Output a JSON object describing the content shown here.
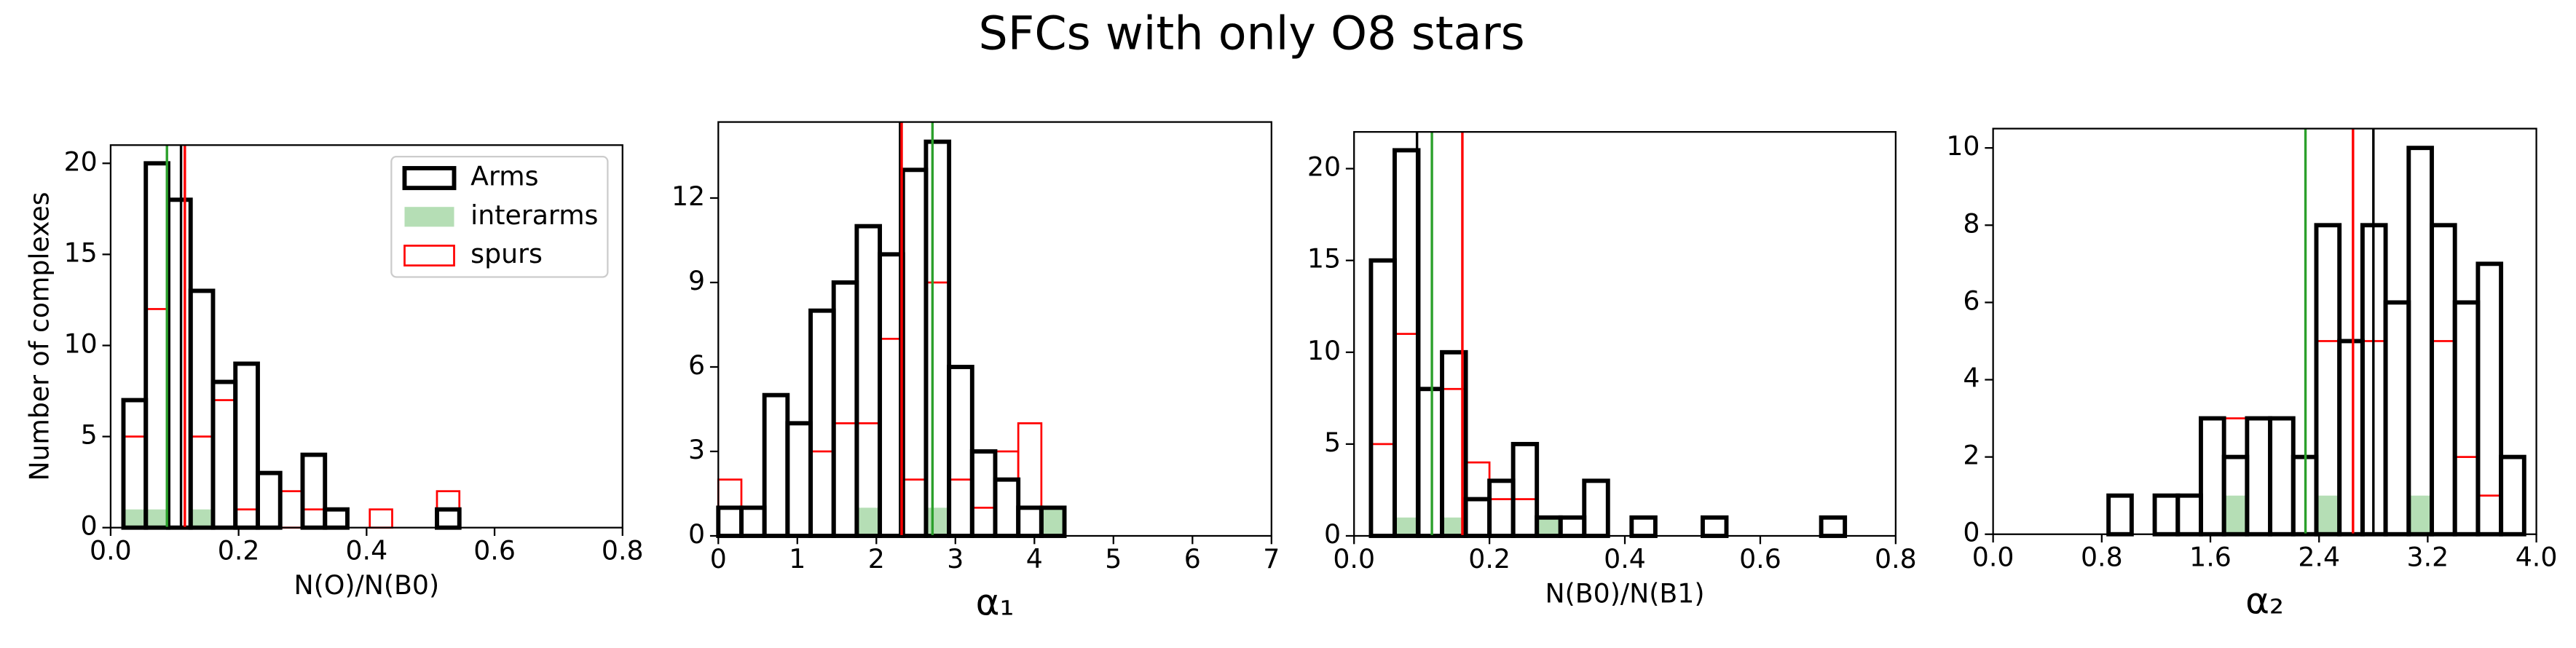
{
  "title": "SFCs with only O8 stars",
  "chart_data": [
    {
      "type": "histogram",
      "xlabel": "N(O)/N(B0)",
      "ylabel": "Number of complexes",
      "legend": "upper right",
      "xlim": [
        0,
        0.8
      ],
      "xticks": [
        {
          "value": 0,
          "label": "0.0"
        },
        0.2,
        0.4,
        0.6,
        0.8
      ],
      "ylim": [
        0,
        21
      ],
      "yticks": [
        0,
        5,
        10,
        15,
        20
      ],
      "bins": [
        0.02,
        0.055,
        0.09,
        0.125,
        0.16,
        0.195,
        0.23,
        0.265,
        0.3,
        0.335,
        0.37,
        0.405,
        0.44,
        0.475,
        0.51,
        0.545
      ],
      "series": [
        {
          "name": "Arms",
          "color": "#000000",
          "histtype": "step",
          "median": 0.11,
          "values": [
            7,
            20,
            18,
            13,
            8,
            9,
            3,
            0,
            4,
            1,
            0,
            0,
            0,
            0,
            1
          ]
        },
        {
          "name": "interarms",
          "color": "#2ca02c",
          "histtype": "stepfilled",
          "alpha": 0.35,
          "median": 0.088,
          "values": [
            1,
            1,
            0,
            1,
            0,
            0,
            0,
            0,
            0,
            0,
            0,
            0,
            0,
            0,
            0
          ]
        },
        {
          "name": "spurs",
          "color": "#ff0000",
          "histtype": "step",
          "median": 0.116,
          "values": [
            5,
            12,
            0,
            5,
            7,
            1,
            3,
            2,
            1,
            0,
            0,
            1,
            0,
            0,
            2
          ]
        }
      ]
    },
    {
      "type": "histogram",
      "xlabel": "α₁",
      "xlim": [
        0,
        7
      ],
      "xticks": [
        0,
        1,
        2,
        3,
        4,
        5,
        6,
        7
      ],
      "ylim": [
        0,
        14.7
      ],
      "yticks": [
        0,
        3,
        6,
        9,
        12
      ],
      "bins": [
        0,
        0.292,
        0.584,
        0.876,
        1.168,
        1.46,
        1.752,
        2.044,
        2.336,
        2.628,
        2.92,
        3.212,
        3.504,
        3.796,
        4.088,
        4.38
      ],
      "series": [
        {
          "color": "#000000",
          "histtype": "step",
          "median": 2.3,
          "values": [
            1,
            1,
            5,
            4,
            8,
            9,
            11,
            10,
            13,
            14,
            6,
            3,
            2,
            1,
            1
          ]
        },
        {
          "color": "#2ca02c",
          "histtype": "stepfilled",
          "alpha": 0.35,
          "median": 2.71,
          "values": [
            0,
            0,
            0,
            0,
            0,
            0,
            1,
            0,
            0,
            1,
            0,
            0,
            0,
            0,
            1
          ]
        },
        {
          "color": "#ff0000",
          "histtype": "step",
          "median": 2.32,
          "values": [
            2,
            1,
            0,
            4,
            3,
            4,
            4,
            7,
            2,
            9,
            2,
            1,
            3,
            4,
            1
          ]
        }
      ]
    },
    {
      "type": "histogram",
      "xlabel": "N(B0)/N(B1)",
      "xlim": [
        0,
        0.8
      ],
      "xticks": [
        {
          "value": 0,
          "label": "0.0"
        },
        0.2,
        0.4,
        0.6,
        0.8
      ],
      "ylim": [
        0,
        22
      ],
      "yticks": [
        0,
        5,
        10,
        15,
        20
      ],
      "bins": [
        0.025,
        0.06,
        0.095,
        0.13,
        0.165,
        0.2,
        0.235,
        0.27,
        0.305,
        0.34,
        0.375,
        0.41,
        0.445,
        0.48,
        0.515,
        0.55,
        0.585,
        0.62,
        0.655,
        0.69,
        0.725
      ],
      "series": [
        {
          "color": "#000000",
          "histtype": "step",
          "median": 0.093,
          "values": [
            15,
            21,
            8,
            10,
            2,
            3,
            5,
            1,
            1,
            3,
            0,
            1,
            0,
            0,
            1,
            0,
            0,
            0,
            0,
            1
          ]
        },
        {
          "color": "#2ca02c",
          "histtype": "stepfilled",
          "alpha": 0.35,
          "median": 0.115,
          "values": [
            0,
            1,
            0,
            1,
            0,
            0,
            0,
            1,
            0,
            0,
            0,
            0,
            0,
            0,
            0,
            0,
            0,
            0,
            0,
            0
          ]
        },
        {
          "color": "#ff0000",
          "histtype": "step",
          "median": 0.16,
          "values": [
            5,
            11,
            8,
            8,
            4,
            2,
            2,
            1,
            0,
            0,
            0,
            1,
            0,
            0,
            1,
            0,
            0,
            0,
            0,
            0
          ]
        }
      ]
    },
    {
      "type": "histogram",
      "xlabel": "α₂",
      "xlim": [
        0,
        4
      ],
      "xticks": [
        {
          "value": 0,
          "label": "0.0"
        },
        0.8,
        1.6,
        2.4,
        3.2,
        {
          "value": 4,
          "label": "4.0"
        }
      ],
      "ylim": [
        0,
        10.5
      ],
      "yticks": [
        0,
        2,
        4,
        6,
        8,
        10
      ],
      "bins": [
        0.85,
        1.02,
        1.19,
        1.36,
        1.53,
        1.7,
        1.87,
        2.04,
        2.21,
        2.38,
        2.55,
        2.72,
        2.89,
        3.06,
        3.23,
        3.4,
        3.57,
        3.74,
        3.91
      ],
      "series": [
        {
          "color": "#000000",
          "histtype": "step",
          "median": 2.8,
          "values": [
            1,
            0,
            1,
            1,
            3,
            2,
            3,
            3,
            2,
            8,
            5,
            8,
            6,
            10,
            8,
            6,
            7,
            2
          ]
        },
        {
          "color": "#2ca02c",
          "histtype": "stepfilled",
          "alpha": 0.35,
          "median": 2.3,
          "values": [
            0,
            0,
            0,
            0,
            0,
            1,
            0,
            0,
            0,
            1,
            0,
            0,
            0,
            1,
            0,
            0,
            0,
            0
          ]
        },
        {
          "color": "#ff0000",
          "histtype": "step",
          "median": 2.65,
          "values": [
            0,
            0,
            1,
            1,
            0,
            3,
            3,
            3,
            0,
            5,
            5,
            5,
            6,
            0,
            5,
            2,
            1,
            0
          ]
        }
      ]
    }
  ]
}
